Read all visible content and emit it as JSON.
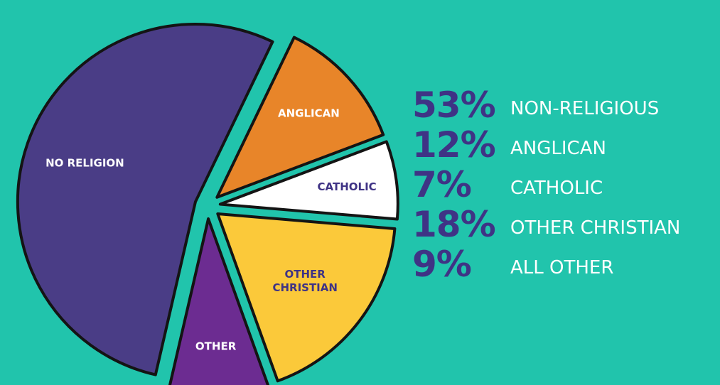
{
  "chart_data": {
    "type": "pie",
    "slices": [
      {
        "label": "NO RELIGION",
        "value": 53,
        "color": "#4a3d86",
        "label_color": "#ffffff",
        "name": "no-religion"
      },
      {
        "label": "ANGLICAN",
        "value": 12,
        "color": "#e88529",
        "label_color": "#ffffff",
        "name": "anglican"
      },
      {
        "label": "CATHOLIC",
        "value": 7,
        "color": "#ffffff",
        "label_color": "#3f3385",
        "name": "catholic"
      },
      {
        "label": "OTHER\nCHRISTIAN",
        "value": 18,
        "color": "#fbc93a",
        "label_color": "#3f3385",
        "name": "other-christian"
      },
      {
        "label": "OTHER",
        "value": 9,
        "color": "#6c2c91",
        "label_color": "#ffffff",
        "name": "other"
      }
    ],
    "legend": [
      {
        "pct": "53%",
        "text": "NON-RELIGIOUS"
      },
      {
        "pct": "12%",
        "text": "ANGLICAN"
      },
      {
        "pct": "7%",
        "text": "CATHOLIC"
      },
      {
        "pct": "18%",
        "text": "OTHER CHRISTIAN"
      },
      {
        "pct": "9%",
        "text": "ALL OTHER"
      }
    ],
    "legend_placement": "right"
  },
  "colors": {
    "background": "#21c4ac",
    "legend_pct": "#3f3385",
    "legend_text": "#ffffff",
    "outline": "#141414"
  }
}
